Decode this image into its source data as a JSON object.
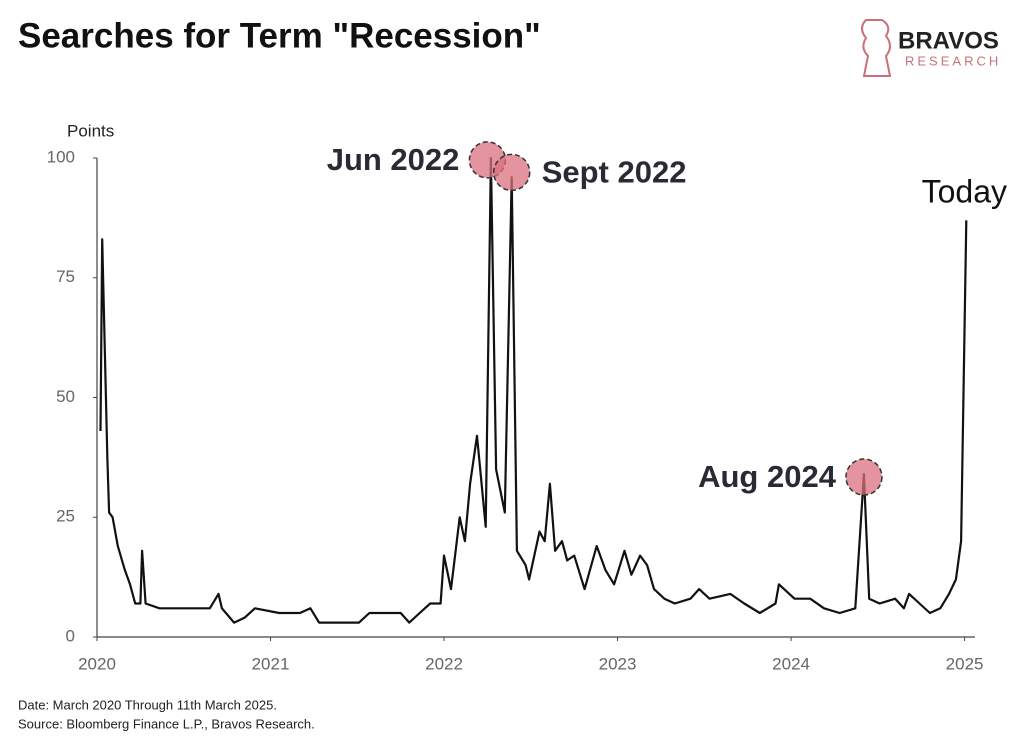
{
  "chart_data": {
    "type": "line",
    "title": "Searches for Term \"Recession\"",
    "brand": {
      "name": "BRAVOS",
      "tagline": "RESEARCH"
    },
    "y_label": "Points",
    "notes": [
      "Date: March 2020 Through 11th March 2025.",
      "Source: Bloomberg Finance L.P., Bravos Research."
    ],
    "color": "#111111",
    "highlight_color": "#d9707f",
    "xlim": [
      2020,
      2025.06
    ],
    "ylim": [
      0,
      100
    ],
    "xticks": [
      2020,
      2021,
      2022,
      2023,
      2024,
      2025
    ],
    "yticks": [
      0,
      25,
      50,
      75,
      100
    ],
    "grid": false,
    "x": [
      2020.02,
      2020.03,
      2020.06,
      2020.07,
      2020.09,
      2020.12,
      2020.16,
      2020.19,
      2020.22,
      2020.25,
      2020.26,
      2020.28,
      2020.36,
      2020.45,
      2020.54,
      2020.65,
      2020.7,
      2020.72,
      2020.79,
      2020.85,
      2020.91,
      2021.05,
      2021.17,
      2021.23,
      2021.28,
      2021.51,
      2021.57,
      2021.75,
      2021.8,
      2021.86,
      2021.92,
      2021.98,
      2022.0,
      2022.04,
      2022.09,
      2022.12,
      2022.15,
      2022.19,
      2022.24,
      2022.27,
      2022.3,
      2022.35,
      2022.39,
      2022.42,
      2022.47,
      2022.49,
      2022.55,
      2022.58,
      2022.61,
      2022.64,
      2022.68,
      2022.71,
      2022.75,
      2022.81,
      2022.88,
      2022.93,
      2022.98,
      2023.04,
      2023.08,
      2023.13,
      2023.17,
      2023.21,
      2023.27,
      2023.33,
      2023.42,
      2023.47,
      2023.53,
      2023.65,
      2023.73,
      2023.82,
      2023.91,
      2023.93,
      2024.02,
      2024.11,
      2024.19,
      2024.28,
      2024.37,
      2024.42,
      2024.45,
      2024.51,
      2024.6,
      2024.65,
      2024.68,
      2024.74,
      2024.8,
      2024.86,
      2024.91,
      2024.95,
      2024.98,
      2025.01
    ],
    "values": [
      43,
      83,
      37,
      26,
      25,
      19,
      14,
      11,
      7,
      7,
      18,
      7,
      6,
      6,
      6,
      6,
      9,
      6,
      3,
      4,
      6,
      5,
      5,
      6,
      3,
      3,
      5,
      5,
      3,
      5,
      7,
      7,
      17,
      10,
      25,
      20,
      32,
      42,
      23,
      100,
      35,
      26,
      96,
      18,
      15,
      12,
      22,
      20,
      32,
      18,
      20,
      16,
      17,
      10,
      19,
      14,
      11,
      18,
      13,
      17,
      15,
      10,
      8,
      7,
      8,
      10,
      8,
      9,
      7,
      5,
      7,
      11,
      8,
      8,
      6,
      5,
      6,
      34,
      8,
      7,
      8,
      6,
      9,
      7,
      5,
      6,
      9,
      12,
      20,
      87
    ],
    "annotations": [
      {
        "text": "Jun 2022",
        "x": 2022.25,
        "y": 99.6,
        "side": "left"
      },
      {
        "text": "Sept 2022",
        "x": 2022.39,
        "y": 97,
        "side": "right"
      },
      {
        "text": "Aug 2024",
        "x": 2024.42,
        "y": 33.4,
        "side": "left"
      }
    ],
    "end_label": "Today"
  }
}
